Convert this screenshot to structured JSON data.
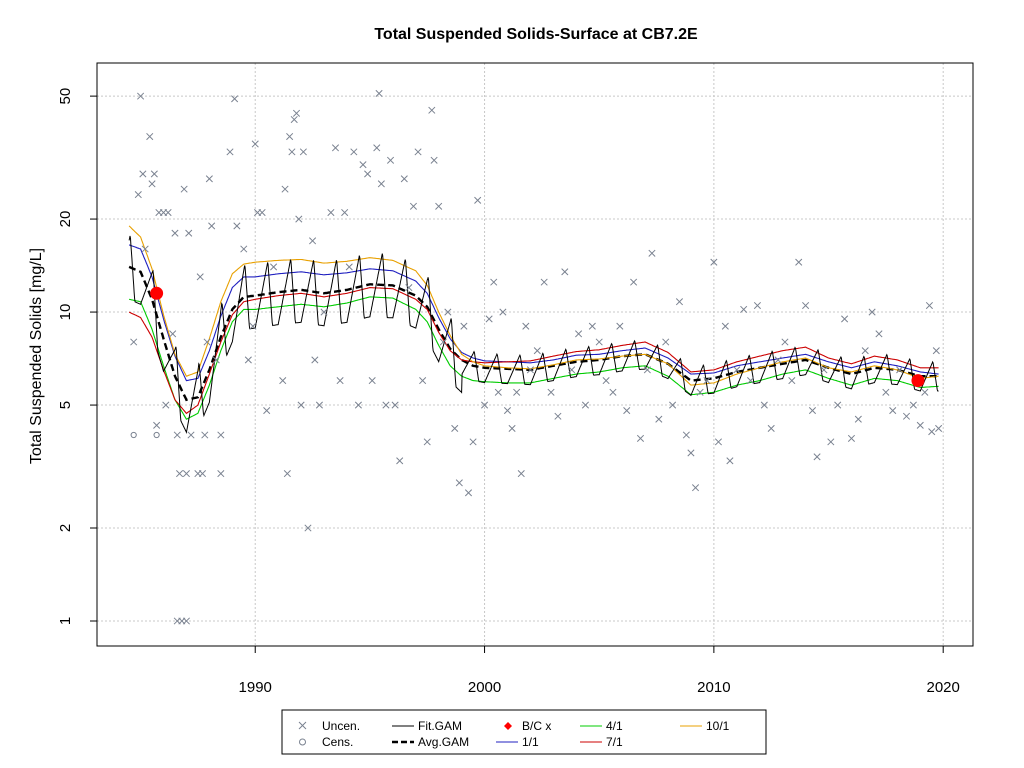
{
  "chart_data": {
    "type": "scatter",
    "title": "Total Suspended Solids-Surface at CB7.2E",
    "xlabel": "",
    "ylabel": "Total Suspended Solids [mg/L]",
    "log_y": true,
    "xlim": [
      1983.1,
      2021.3
    ],
    "ylim": [
      0.83,
      64
    ],
    "x_ticks": [
      1990,
      2000,
      2010,
      2020
    ],
    "y_ticks": [
      1,
      2,
      5,
      10,
      20,
      50
    ],
    "grid": true,
    "legend_position": "bottom",
    "colors": {
      "uncensored": "#7a8290",
      "fit_gam": "#000000",
      "avg_gam": "#000000",
      "bc": "#ff0000",
      "m1_1": "#2020c0",
      "m4_1": "#00cc00",
      "m7_1": "#cc0000",
      "m10_1": "#e8a000"
    },
    "legend": [
      {
        "key": "uncen",
        "label": "Uncen.",
        "symbol": "x"
      },
      {
        "key": "cens",
        "label": "Cens.",
        "symbol": "o"
      },
      {
        "key": "fit",
        "label": "Fit.GAM",
        "symbol": "line"
      },
      {
        "key": "avg",
        "label": "Avg.GAM",
        "symbol": "dash"
      },
      {
        "key": "bc",
        "label": "B/C x",
        "symbol": "diamond"
      },
      {
        "key": "m1",
        "label": "1/1",
        "symbol": "line"
      },
      {
        "key": "m4",
        "label": "4/1",
        "symbol": "line"
      },
      {
        "key": "m7",
        "label": "7/1",
        "symbol": "line"
      },
      {
        "key": "m10",
        "label": "10/1",
        "symbol": "line"
      }
    ],
    "bc_points": [
      {
        "x": 1985.7,
        "y": 11.5
      },
      {
        "x": 2018.9,
        "y": 6.0
      }
    ],
    "censored_points": [
      {
        "x": 1984.7,
        "y": 4.0
      },
      {
        "x": 1985.7,
        "y": 4.0
      }
    ],
    "uncensored_points": [
      {
        "x": 1984.7,
        "y": 8.0
      },
      {
        "x": 1984.9,
        "y": 24
      },
      {
        "x": 1985.0,
        "y": 50
      },
      {
        "x": 1985.1,
        "y": 28
      },
      {
        "x": 1985.2,
        "y": 16
      },
      {
        "x": 1985.4,
        "y": 37
      },
      {
        "x": 1985.5,
        "y": 26
      },
      {
        "x": 1985.6,
        "y": 28
      },
      {
        "x": 1985.7,
        "y": 4.3
      },
      {
        "x": 1985.8,
        "y": 21
      },
      {
        "x": 1986.0,
        "y": 21
      },
      {
        "x": 1986.1,
        "y": 5.0
      },
      {
        "x": 1986.2,
        "y": 21
      },
      {
        "x": 1986.4,
        "y": 8.5
      },
      {
        "x": 1986.5,
        "y": 18
      },
      {
        "x": 1986.6,
        "y": 4.0
      },
      {
        "x": 1986.6,
        "y": 1.0
      },
      {
        "x": 1986.7,
        "y": 3.0
      },
      {
        "x": 1986.8,
        "y": 1.0
      },
      {
        "x": 1986.9,
        "y": 25
      },
      {
        "x": 1987.0,
        "y": 1.0
      },
      {
        "x": 1987.0,
        "y": 3.0
      },
      {
        "x": 1987.1,
        "y": 18
      },
      {
        "x": 1987.2,
        "y": 4.0
      },
      {
        "x": 1987.5,
        "y": 3.0
      },
      {
        "x": 1987.6,
        "y": 13
      },
      {
        "x": 1987.7,
        "y": 3.0
      },
      {
        "x": 1987.8,
        "y": 4.0
      },
      {
        "x": 1987.9,
        "y": 8.0
      },
      {
        "x": 1988.0,
        "y": 27
      },
      {
        "x": 1988.1,
        "y": 19
      },
      {
        "x": 1988.3,
        "y": 7.0
      },
      {
        "x": 1988.5,
        "y": 3.0
      },
      {
        "x": 1988.5,
        "y": 4.0
      },
      {
        "x": 1988.9,
        "y": 33
      },
      {
        "x": 1989.1,
        "y": 49
      },
      {
        "x": 1989.2,
        "y": 19
      },
      {
        "x": 1989.5,
        "y": 16
      },
      {
        "x": 1989.7,
        "y": 7.0
      },
      {
        "x": 1989.9,
        "y": 9.0
      },
      {
        "x": 1990.0,
        "y": 35
      },
      {
        "x": 1990.1,
        "y": 21
      },
      {
        "x": 1990.3,
        "y": 21
      },
      {
        "x": 1990.5,
        "y": 4.8
      },
      {
        "x": 1990.8,
        "y": 14
      },
      {
        "x": 1991.2,
        "y": 6.0
      },
      {
        "x": 1991.3,
        "y": 25
      },
      {
        "x": 1991.4,
        "y": 3.0
      },
      {
        "x": 1991.5,
        "y": 37
      },
      {
        "x": 1991.6,
        "y": 33
      },
      {
        "x": 1991.7,
        "y": 42
      },
      {
        "x": 1991.8,
        "y": 44
      },
      {
        "x": 1991.9,
        "y": 20
      },
      {
        "x": 1992.0,
        "y": 5.0
      },
      {
        "x": 1992.1,
        "y": 33
      },
      {
        "x": 1992.3,
        "y": 2.0
      },
      {
        "x": 1992.5,
        "y": 17
      },
      {
        "x": 1992.6,
        "y": 7.0
      },
      {
        "x": 1992.8,
        "y": 5.0
      },
      {
        "x": 1993.0,
        "y": 10
      },
      {
        "x": 1993.3,
        "y": 21
      },
      {
        "x": 1993.5,
        "y": 34
      },
      {
        "x": 1993.7,
        "y": 6.0
      },
      {
        "x": 1993.9,
        "y": 21
      },
      {
        "x": 1994.1,
        "y": 14
      },
      {
        "x": 1994.3,
        "y": 33
      },
      {
        "x": 1994.5,
        "y": 5.0
      },
      {
        "x": 1994.7,
        "y": 30
      },
      {
        "x": 1994.9,
        "y": 28
      },
      {
        "x": 1995.1,
        "y": 6.0
      },
      {
        "x": 1995.3,
        "y": 34
      },
      {
        "x": 1995.4,
        "y": 51
      },
      {
        "x": 1995.5,
        "y": 26
      },
      {
        "x": 1995.7,
        "y": 5.0
      },
      {
        "x": 1995.9,
        "y": 31
      },
      {
        "x": 1996.1,
        "y": 5.0
      },
      {
        "x": 1996.3,
        "y": 3.3
      },
      {
        "x": 1996.5,
        "y": 27
      },
      {
        "x": 1996.7,
        "y": 12
      },
      {
        "x": 1996.9,
        "y": 22
      },
      {
        "x": 1997.1,
        "y": 33
      },
      {
        "x": 1997.3,
        "y": 6.0
      },
      {
        "x": 1997.5,
        "y": 3.8
      },
      {
        "x": 1997.7,
        "y": 45
      },
      {
        "x": 1997.8,
        "y": 31
      },
      {
        "x": 1998.0,
        "y": 22
      },
      {
        "x": 1998.2,
        "y": 8.0
      },
      {
        "x": 1998.4,
        "y": 10
      },
      {
        "x": 1998.7,
        "y": 4.2
      },
      {
        "x": 1998.9,
        "y": 2.8
      },
      {
        "x": 1999.1,
        "y": 9.0
      },
      {
        "x": 1999.3,
        "y": 2.6
      },
      {
        "x": 1999.5,
        "y": 3.8
      },
      {
        "x": 1999.7,
        "y": 23
      },
      {
        "x": 2000.0,
        "y": 5.0
      },
      {
        "x": 2000.2,
        "y": 9.5
      },
      {
        "x": 2000.4,
        "y": 12.5
      },
      {
        "x": 2000.6,
        "y": 5.5
      },
      {
        "x": 2000.8,
        "y": 10
      },
      {
        "x": 2001.0,
        "y": 4.8
      },
      {
        "x": 2001.2,
        "y": 4.2
      },
      {
        "x": 2001.4,
        "y": 5.5
      },
      {
        "x": 2001.6,
        "y": 3.0
      },
      {
        "x": 2001.8,
        "y": 9.0
      },
      {
        "x": 2002.0,
        "y": 6.5
      },
      {
        "x": 2002.3,
        "y": 7.5
      },
      {
        "x": 2002.6,
        "y": 12.5
      },
      {
        "x": 2002.9,
        "y": 5.5
      },
      {
        "x": 2003.2,
        "y": 4.6
      },
      {
        "x": 2003.5,
        "y": 13.5
      },
      {
        "x": 2003.8,
        "y": 6.5
      },
      {
        "x": 2004.1,
        "y": 8.5
      },
      {
        "x": 2004.4,
        "y": 5.0
      },
      {
        "x": 2004.7,
        "y": 9.0
      },
      {
        "x": 2005.0,
        "y": 8.0
      },
      {
        "x": 2005.3,
        "y": 6.0
      },
      {
        "x": 2005.6,
        "y": 5.5
      },
      {
        "x": 2005.9,
        "y": 9.0
      },
      {
        "x": 2006.2,
        "y": 4.8
      },
      {
        "x": 2006.5,
        "y": 12.5
      },
      {
        "x": 2006.8,
        "y": 3.9
      },
      {
        "x": 2007.1,
        "y": 6.5
      },
      {
        "x": 2007.3,
        "y": 15.5
      },
      {
        "x": 2007.6,
        "y": 4.5
      },
      {
        "x": 2007.9,
        "y": 8.0
      },
      {
        "x": 2008.2,
        "y": 5.0
      },
      {
        "x": 2008.5,
        "y": 10.8
      },
      {
        "x": 2008.8,
        "y": 4.0
      },
      {
        "x": 2009.0,
        "y": 3.5
      },
      {
        "x": 2009.2,
        "y": 2.7
      },
      {
        "x": 2009.4,
        "y": 5.5
      },
      {
        "x": 2009.7,
        "y": 6.0
      },
      {
        "x": 2010.0,
        "y": 14.5
      },
      {
        "x": 2010.2,
        "y": 3.8
      },
      {
        "x": 2010.5,
        "y": 9.0
      },
      {
        "x": 2010.7,
        "y": 3.3
      },
      {
        "x": 2011.0,
        "y": 6.5
      },
      {
        "x": 2011.3,
        "y": 10.2
      },
      {
        "x": 2011.6,
        "y": 6.0
      },
      {
        "x": 2011.9,
        "y": 10.5
      },
      {
        "x": 2012.2,
        "y": 5.0
      },
      {
        "x": 2012.5,
        "y": 4.2
      },
      {
        "x": 2012.8,
        "y": 7.0
      },
      {
        "x": 2013.1,
        "y": 8.0
      },
      {
        "x": 2013.4,
        "y": 6.0
      },
      {
        "x": 2013.7,
        "y": 14.5
      },
      {
        "x": 2014.0,
        "y": 10.5
      },
      {
        "x": 2014.3,
        "y": 4.8
      },
      {
        "x": 2014.5,
        "y": 3.4
      },
      {
        "x": 2014.8,
        "y": 6.5
      },
      {
        "x": 2015.1,
        "y": 3.8
      },
      {
        "x": 2015.4,
        "y": 5.0
      },
      {
        "x": 2015.7,
        "y": 9.5
      },
      {
        "x": 2016.0,
        "y": 3.9
      },
      {
        "x": 2016.3,
        "y": 4.5
      },
      {
        "x": 2016.6,
        "y": 7.5
      },
      {
        "x": 2016.9,
        "y": 10.0
      },
      {
        "x": 2017.2,
        "y": 8.5
      },
      {
        "x": 2017.5,
        "y": 5.5
      },
      {
        "x": 2017.8,
        "y": 4.8
      },
      {
        "x": 2018.1,
        "y": 6.5
      },
      {
        "x": 2018.4,
        "y": 4.6
      },
      {
        "x": 2018.7,
        "y": 5.0
      },
      {
        "x": 2019.0,
        "y": 4.3
      },
      {
        "x": 2019.2,
        "y": 5.5
      },
      {
        "x": 2019.4,
        "y": 10.5
      },
      {
        "x": 2019.5,
        "y": 4.1
      },
      {
        "x": 2019.7,
        "y": 7.5
      },
      {
        "x": 2019.8,
        "y": 4.2
      }
    ],
    "series": [
      {
        "key": "avg",
        "x": [
          1984.5,
          1985.0,
          1985.5,
          1986.0,
          1986.5,
          1987.0,
          1987.5,
          1988.0,
          1988.5,
          1989.0,
          1989.5,
          1990.0,
          1991.0,
          1992.0,
          1993.0,
          1994.0,
          1995.0,
          1996.0,
          1997.0,
          1997.5,
          1998.0,
          1998.5,
          1999.0,
          1999.5,
          2000.0,
          2001.0,
          2002.0,
          2003.0,
          2004.0,
          2005.0,
          2006.0,
          2007.0,
          2008.0,
          2009.0,
          2010.0,
          2011.0,
          2012.0,
          2013.0,
          2014.0,
          2015.0,
          2016.0,
          2017.0,
          2018.0,
          2019.0,
          2019.8
        ],
        "y": [
          14.0,
          13.5,
          11.0,
          8.2,
          6.2,
          5.2,
          5.3,
          6.5,
          8.3,
          10.2,
          11.2,
          11.3,
          11.6,
          11.8,
          11.5,
          11.8,
          12.3,
          12.2,
          11.3,
          10.4,
          8.8,
          7.6,
          7.0,
          6.7,
          6.6,
          6.55,
          6.5,
          6.7,
          6.9,
          7.0,
          7.2,
          7.3,
          6.8,
          6.0,
          6.1,
          6.4,
          6.6,
          6.8,
          7.0,
          6.6,
          6.3,
          6.6,
          6.5,
          6.2,
          6.2
        ]
      },
      {
        "key": "m1",
        "x": [
          1984.5,
          1985.0,
          1985.5,
          1986.0,
          1986.5,
          1987.0,
          1987.5,
          1988.0,
          1988.5,
          1989.0,
          1989.5,
          1990.0,
          1991.0,
          1992.0,
          1993.0,
          1994.0,
          1995.0,
          1996.0,
          1997.0,
          1997.5,
          1998.0,
          1998.5,
          1999.0,
          1999.5,
          2000.0,
          2001.0,
          2002.0,
          2003.0,
          2004.0,
          2005.0,
          2006.0,
          2007.0,
          2008.0,
          2009.0,
          2010.0,
          2011.0,
          2012.0,
          2013.0,
          2014.0,
          2015.0,
          2016.0,
          2017.0,
          2018.0,
          2019.0,
          2019.8
        ],
        "y": [
          16.5,
          16.0,
          13.0,
          9.5,
          7.2,
          6.0,
          6.1,
          7.5,
          9.7,
          12.0,
          13.0,
          13.0,
          13.3,
          13.5,
          13.2,
          13.4,
          13.8,
          13.6,
          12.6,
          11.5,
          9.6,
          8.2,
          7.4,
          7.1,
          6.95,
          6.9,
          6.85,
          7.0,
          7.25,
          7.3,
          7.5,
          7.65,
          7.1,
          6.3,
          6.35,
          6.7,
          6.9,
          7.1,
          7.3,
          6.9,
          6.6,
          6.9,
          6.7,
          6.4,
          6.3
        ]
      },
      {
        "key": "m4",
        "x": [
          1984.5,
          1985.0,
          1985.5,
          1986.0,
          1986.5,
          1987.0,
          1987.5,
          1988.0,
          1988.5,
          1989.0,
          1989.5,
          1990.0,
          1991.0,
          1992.0,
          1993.0,
          1994.0,
          1995.0,
          1996.0,
          1997.0,
          1997.5,
          1998.0,
          1998.5,
          1999.0,
          1999.5,
          2000.0,
          2001.0,
          2002.0,
          2003.0,
          2004.0,
          2005.0,
          2006.0,
          2007.0,
          2008.0,
          2009.0,
          2010.0,
          2011.0,
          2012.0,
          2013.0,
          2014.0,
          2015.0,
          2016.0,
          2017.0,
          2018.0,
          2019.0,
          2019.8
        ],
        "y": [
          11.0,
          10.8,
          8.8,
          6.7,
          5.2,
          4.5,
          4.7,
          5.8,
          7.5,
          9.3,
          10.2,
          10.2,
          10.4,
          10.6,
          10.4,
          10.7,
          11.2,
          11.1,
          10.2,
          9.3,
          7.8,
          6.7,
          6.2,
          6.0,
          5.95,
          5.9,
          5.9,
          6.1,
          6.3,
          6.4,
          6.6,
          6.7,
          6.2,
          5.4,
          5.5,
          5.8,
          6.0,
          6.3,
          6.5,
          6.1,
          5.8,
          6.1,
          6.0,
          5.7,
          5.75
        ]
      },
      {
        "key": "m7",
        "x": [
          1984.5,
          1985.0,
          1985.5,
          1986.0,
          1986.5,
          1987.0,
          1987.5,
          1988.0,
          1988.5,
          1989.0,
          1989.5,
          1990.0,
          1991.0,
          1992.0,
          1993.0,
          1994.0,
          1995.0,
          1996.0,
          1997.0,
          1997.5,
          1998.0,
          1998.5,
          1999.0,
          1999.5,
          2000.0,
          2001.0,
          2002.0,
          2003.0,
          2004.0,
          2005.0,
          2006.0,
          2007.0,
          2008.0,
          2009.0,
          2010.0,
          2011.0,
          2012.0,
          2013.0,
          2014.0,
          2015.0,
          2016.0,
          2017.0,
          2018.0,
          2019.0,
          2019.8
        ],
        "y": [
          10.0,
          9.6,
          8.3,
          6.5,
          5.2,
          4.7,
          5.0,
          6.3,
          8.0,
          9.8,
          10.8,
          11.0,
          11.3,
          11.5,
          11.2,
          11.5,
          12.0,
          11.9,
          11.0,
          10.2,
          8.6,
          7.5,
          7.0,
          6.9,
          6.85,
          6.9,
          6.95,
          7.2,
          7.45,
          7.55,
          7.8,
          8.0,
          7.4,
          6.4,
          6.5,
          6.9,
          7.2,
          7.5,
          7.7,
          7.1,
          6.8,
          7.2,
          7.0,
          6.6,
          6.6
        ]
      },
      {
        "key": "m10",
        "x": [
          1984.5,
          1985.0,
          1985.5,
          1986.0,
          1986.5,
          1987.0,
          1987.5,
          1988.0,
          1988.5,
          1989.0,
          1989.5,
          1990.0,
          1991.0,
          1992.0,
          1993.0,
          1994.0,
          1995.0,
          1996.0,
          1997.0,
          1997.5,
          1998.0,
          1998.5,
          1999.0,
          1999.5,
          2000.0,
          2001.0,
          2002.0,
          2003.0,
          2004.0,
          2005.0,
          2006.0,
          2007.0,
          2008.0,
          2009.0,
          2010.0,
          2011.0,
          2012.0,
          2013.0,
          2014.0,
          2015.0,
          2016.0,
          2017.0,
          2018.0,
          2019.0,
          2019.8
        ],
        "y": [
          19.0,
          17.5,
          13.8,
          9.8,
          7.3,
          6.2,
          6.4,
          8.2,
          10.8,
          13.3,
          14.3,
          14.5,
          14.7,
          14.8,
          14.4,
          14.6,
          15.0,
          14.7,
          13.6,
          12.2,
          10.0,
          8.4,
          7.3,
          6.9,
          6.7,
          6.6,
          6.55,
          6.75,
          7.0,
          7.05,
          7.2,
          7.3,
          6.8,
          5.8,
          5.9,
          6.3,
          6.6,
          6.9,
          7.1,
          6.6,
          6.4,
          6.7,
          6.5,
          6.1,
          6.2
        ]
      }
    ],
    "seasonal_amplitude": 0.11
  }
}
